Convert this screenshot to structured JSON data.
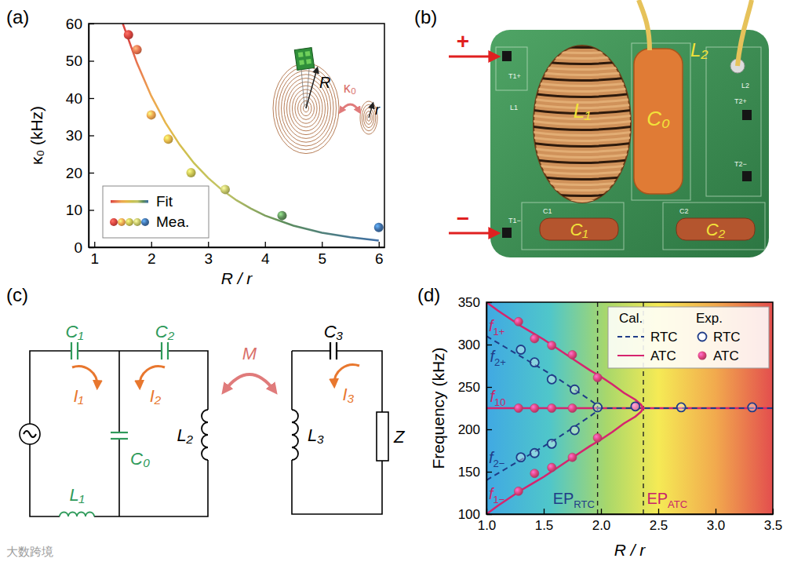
{
  "panels": {
    "a": "(a)",
    "b": "(b)",
    "c": "(c)",
    "d": "(d)"
  },
  "watermark": "大数跨境",
  "chart_data": [
    {
      "type": "scatter",
      "x_label": "R / r",
      "y_label": "κ₀ (kHz)",
      "xlim": [
        0.9,
        6.1
      ],
      "ylim": [
        0,
        60
      ],
      "xticks": [
        1,
        2,
        3,
        4,
        5,
        6
      ],
      "yticks": [
        0,
        10,
        20,
        30,
        40,
        50,
        60
      ],
      "legend": "lower left",
      "series": [
        {
          "name": "Fit",
          "type": "line",
          "line_style": "solid",
          "x": [
            1.5,
            1.75,
            2,
            2.25,
            2.5,
            2.75,
            3,
            3.25,
            3.5,
            3.75,
            4,
            4.5,
            5,
            5.5,
            6
          ],
          "values": [
            60,
            49.4,
            40.6,
            33.4,
            27.5,
            22.6,
            18.6,
            15.3,
            12.6,
            10.4,
            8.5,
            5.8,
            3.9,
            2.7,
            1.8
          ]
        },
        {
          "name": "Mea.",
          "type": "scatter",
          "marker": "circle",
          "colors": [
            "#d9453f",
            "#e8744f",
            "#eda650",
            "#e5b84a",
            "#c9c252",
            "#c2c466",
            "#5f8f5a",
            "#3e6ea6"
          ],
          "x": [
            1.6,
            1.75,
            2,
            2.3,
            2.7,
            3.3,
            4.3,
            6
          ],
          "values": [
            57,
            53,
            35.5,
            29,
            20,
            15.5,
            8.5,
            5.3
          ]
        }
      ],
      "inset_labels": {
        "outer_radius": "R",
        "inner_radius": "r",
        "coupling": "κ₀"
      }
    },
    {
      "type": "line",
      "x_label": "R / r",
      "y_label": "Frequency (kHz)",
      "xlim": [
        1.0,
        3.5
      ],
      "ylim": [
        100,
        350
      ],
      "xticks": [
        {
          "value": 1,
          "label": "1.0"
        },
        1.5,
        {
          "value": 2,
          "label": "2.0"
        },
        2.5,
        {
          "value": 3,
          "label": "3.0"
        },
        3.5
      ],
      "yticks": [
        100,
        150,
        200,
        250,
        300,
        350
      ],
      "legend": "upper right",
      "legend_headers": [
        "Cal.",
        "Exp."
      ],
      "series": [
        {
          "name": "RTC",
          "type": "line",
          "line_style": "dashed",
          "color": "#1f3c88",
          "x": [
            1.0,
            1.1,
            1.2,
            1.3,
            1.4,
            1.5,
            1.6,
            1.7,
            1.8,
            1.9,
            1.95,
            1.97,
            null,
            1.0,
            1.1,
            1.2,
            1.3,
            1.4,
            1.5,
            1.6,
            1.7,
            1.8,
            1.9,
            1.95,
            1.97,
            null,
            1.97,
            3.5
          ],
          "values": [
            310,
            302,
            294,
            286,
            278,
            270,
            262,
            253,
            244,
            235,
            230,
            225,
            null,
            140,
            148,
            156,
            164,
            172,
            180,
            188,
            197,
            206,
            215,
            220,
            225,
            null,
            225,
            225
          ]
        },
        {
          "name": "ATC",
          "type": "line",
          "line_style": "solid",
          "color": "#d6246e",
          "x": [
            1.0,
            1.1,
            1.2,
            1.3,
            1.4,
            1.5,
            1.6,
            1.7,
            1.8,
            1.9,
            2.0,
            2.1,
            2.2,
            2.3,
            2.35,
            2.37,
            null,
            1.0,
            1.1,
            1.2,
            1.3,
            1.4,
            1.5,
            1.6,
            1.7,
            1.8,
            1.9,
            2.0,
            2.1,
            2.2,
            2.3,
            2.35,
            2.37,
            null,
            1.0,
            3.5
          ],
          "values": [
            350,
            340,
            331,
            322,
            314,
            306,
            297,
            288,
            279,
            270,
            262,
            253,
            243,
            235,
            229,
            225,
            null,
            100,
            110,
            119,
            128,
            136,
            144,
            153,
            162,
            171,
            180,
            188,
            197,
            207,
            215,
            221,
            225,
            null,
            225,
            225
          ]
        },
        {
          "name": "RTC",
          "type": "scatter",
          "marker": "open circle",
          "color": "#1f3c88",
          "x": [
            1.3,
            1.42,
            1.57,
            1.77,
            1.3,
            1.42,
            1.57,
            1.77,
            1.97,
            2.3,
            2.7,
            3.32
          ],
          "values": [
            294,
            279,
            259,
            247,
            167,
            172,
            183,
            199,
            226,
            227,
            226,
            226
          ]
        },
        {
          "name": "ATC",
          "type": "scatter",
          "marker": "filled circle",
          "color": "#e0457f",
          "x": [
            1.28,
            1.42,
            1.57,
            1.75,
            1.97,
            1.28,
            1.42,
            1.57,
            1.75,
            1.28,
            1.42,
            1.57,
            1.75,
            1.97,
            2.3
          ],
          "values": [
            327,
            307,
            299,
            288,
            261,
            225,
            225,
            225,
            225,
            127,
            148,
            155,
            167,
            190,
            227
          ]
        }
      ],
      "vlines": [
        1.97,
        2.37
      ],
      "annotations": [
        {
          "text": "f",
          "sub": "1+",
          "x": 1.02,
          "y": 316,
          "color": "#c8246a"
        },
        {
          "text": "f",
          "sub": "2+",
          "x": 1.03,
          "y": 280,
          "color": "#1f3c88"
        },
        {
          "text": "f",
          "sub": "10",
          "x": 1.03,
          "y": 232,
          "color": "#c8246a"
        },
        {
          "text": "f",
          "sub": "2−",
          "x": 1.02,
          "y": 160,
          "color": "#1f3c88"
        },
        {
          "text": "f",
          "sub": "1−",
          "x": 1.02,
          "y": 118,
          "color": "#c8246a"
        },
        {
          "text": "EP",
          "sub": "RTC",
          "x": 1.58,
          "y": 112,
          "color": "#1f3c88"
        },
        {
          "text": "EP",
          "sub": "ATC",
          "x": 2.4,
          "y": 112,
          "color": "#c8246a"
        }
      ]
    }
  ],
  "photo": {
    "terminals": {
      "plus": "+",
      "minus": "−"
    },
    "labels": {
      "inductor_1": "L₁",
      "inductor_2": "L₂",
      "capacitor_0": "C₀",
      "capacitor_1": "C₁",
      "capacitor_2": "C₂"
    },
    "silkscreen": [
      "T1+",
      "L1",
      "L2",
      "T2+",
      "T2−",
      "C1",
      "C2",
      "T1−"
    ]
  },
  "circuit": {
    "labels": {
      "C1": "C₁",
      "C2": "C₂",
      "C0": "C₀",
      "L1": "L₁",
      "L2": "L₂",
      "L3": "L₃",
      "C3": "C₃",
      "Z": "Z",
      "M": "M",
      "I1": "I₁",
      "I2": "I₂",
      "I3": "I₃"
    }
  }
}
